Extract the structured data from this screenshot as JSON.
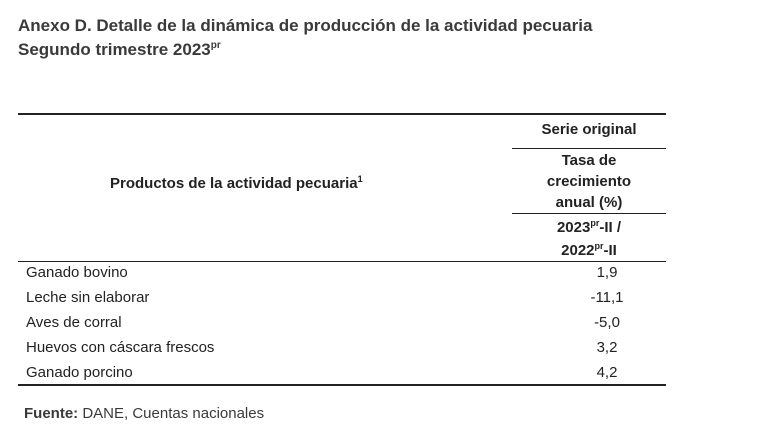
{
  "title": {
    "line1": "Anexo D. Detalle de la dinámica de producción de la actividad pecuaria",
    "line2_text": "Segundo trimestre 2023",
    "line2_sup": "pr"
  },
  "table": {
    "header": {
      "product_label": "Productos de la actividad pecuaria",
      "product_sup": "1",
      "serie": "Serie original",
      "tasa_line1": "Tasa de",
      "tasa_line2": "crecimiento",
      "tasa_line3": "anual (%)",
      "period_a": "2023",
      "period_a_sup": "pr",
      "period_a_suffix": "-II /",
      "period_b": "2022",
      "period_b_sup": "pr",
      "period_b_suffix": "-II"
    },
    "rows": [
      {
        "product": "Ganado bovino",
        "value": "1,9"
      },
      {
        "product": "Leche sin elaborar",
        "value": "-11,1"
      },
      {
        "product": "Aves de corral",
        "value": "-5,0"
      },
      {
        "product": "Huevos con cáscara frescos",
        "value": "3,2"
      },
      {
        "product": "Ganado porcino",
        "value": "4,2"
      }
    ]
  },
  "source": {
    "label": "Fuente:",
    "text": "DANE, Cuentas nacionales"
  }
}
